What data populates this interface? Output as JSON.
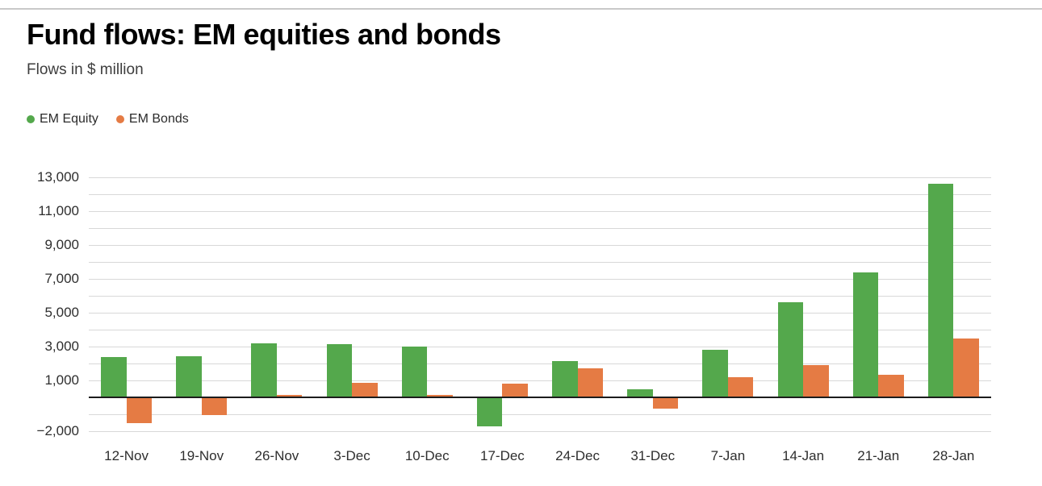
{
  "header": {
    "title": "Fund flows: EM equities and bonds",
    "subtitle": "Flows in $ million"
  },
  "chart_data": {
    "type": "bar",
    "title": "Fund flows: EM equities and bonds",
    "subtitle": "Flows in $ million",
    "categories": [
      "12-Nov",
      "19-Nov",
      "26-Nov",
      "3-Dec",
      "10-Dec",
      "17-Dec",
      "24-Dec",
      "31-Dec",
      "7-Jan",
      "14-Jan",
      "21-Jan",
      "28-Jan"
    ],
    "series": [
      {
        "name": "EM Equity",
        "color": "#54a84c",
        "values": [
          2400,
          2450,
          3200,
          3150,
          3000,
          -1700,
          2150,
          500,
          2800,
          5600,
          7400,
          12600
        ]
      },
      {
        "name": "EM Bonds",
        "color": "#e57b44",
        "values": [
          -1500,
          -1050,
          150,
          850,
          150,
          800,
          1700,
          -650,
          1200,
          1900,
          1350,
          3500
        ]
      }
    ],
    "xlabel": "",
    "ylabel": "",
    "ylim": [
      -2000,
      13000
    ],
    "gridline_step": 1000,
    "y_tick_values": [
      13000,
      11000,
      9000,
      7000,
      5000,
      3000,
      1000,
      -2000
    ],
    "y_tick_labels": [
      "13,000",
      "11,000",
      "9,000",
      "7,000",
      "5,000",
      "3,000",
      "1,000",
      "−2,000"
    ],
    "grid": true,
    "legend_position": "top-left",
    "colors": {
      "grid": "#d8d8d8",
      "zero_line": "#1c1c1c",
      "axis_text": "#2e2e2e"
    }
  }
}
